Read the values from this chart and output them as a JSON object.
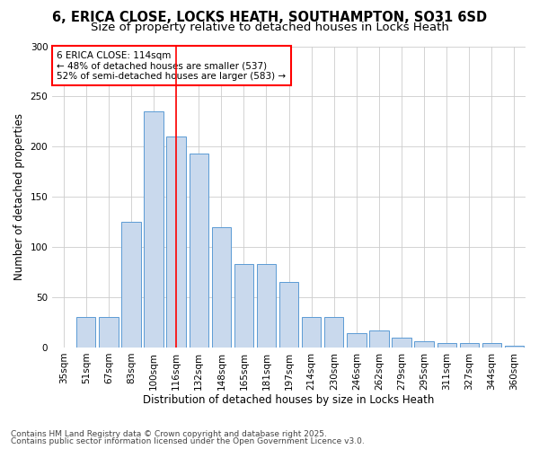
{
  "title_line1": "6, ERICA CLOSE, LOCKS HEATH, SOUTHAMPTON, SO31 6SD",
  "title_line2": "Size of property relative to detached houses in Locks Heath",
  "xlabel": "Distribution of detached houses by size in Locks Heath",
  "ylabel": "Number of detached properties",
  "categories": [
    "35sqm",
    "51sqm",
    "67sqm",
    "83sqm",
    "100sqm",
    "116sqm",
    "132sqm",
    "148sqm",
    "165sqm",
    "181sqm",
    "197sqm",
    "214sqm",
    "230sqm",
    "246sqm",
    "262sqm",
    "279sqm",
    "295sqm",
    "311sqm",
    "327sqm",
    "344sqm",
    "360sqm"
  ],
  "values": [
    0,
    30,
    30,
    125,
    235,
    210,
    193,
    120,
    83,
    83,
    65,
    30,
    30,
    14,
    17,
    10,
    6,
    4,
    4,
    4,
    2
  ],
  "bar_color": "#c9d9ed",
  "bar_edge_color": "#5b9bd5",
  "red_line_index": 5,
  "annotation_title": "6 ERICA CLOSE: 114sqm",
  "annotation_line1": "← 48% of detached houses are smaller (537)",
  "annotation_line2": "52% of semi-detached houses are larger (583) →",
  "ylim": [
    0,
    300
  ],
  "yticks": [
    0,
    50,
    100,
    150,
    200,
    250,
    300
  ],
  "footer_line1": "Contains HM Land Registry data © Crown copyright and database right 2025.",
  "footer_line2": "Contains public sector information licensed under the Open Government Licence v3.0.",
  "bg_color": "#ffffff",
  "plot_bg_color": "#ffffff",
  "grid_color": "#cccccc",
  "title_fontsize": 10.5,
  "subtitle_fontsize": 9.5,
  "axis_label_fontsize": 8.5,
  "tick_fontsize": 7.5,
  "annotation_fontsize": 7.5,
  "footer_fontsize": 6.5
}
